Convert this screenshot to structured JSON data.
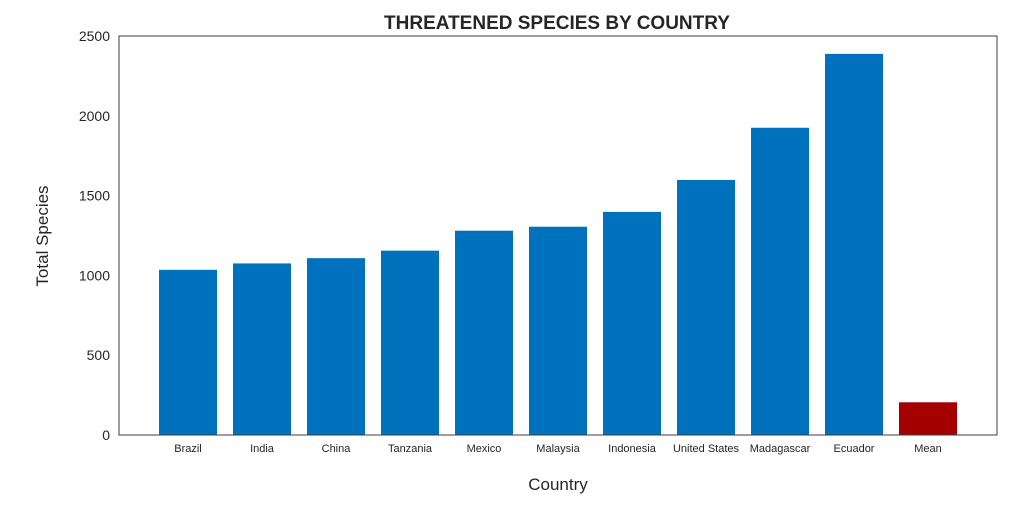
{
  "chart_data": {
    "type": "bar",
    "title": "THREATENED SPECIES BY COUNTRY",
    "xlabel": "Country",
    "ylabel": "Total Species",
    "ylim": [
      0,
      2500
    ],
    "yticks": [
      0,
      500,
      1000,
      1500,
      2000,
      2500
    ],
    "grid": false,
    "categories": [
      "Brazil",
      "India",
      "China",
      "Tanzania",
      "Mexico",
      "Malaysia",
      "Indonesia",
      "United States",
      "Madagascar",
      "Ecuador",
      "Mean"
    ],
    "values": [
      1035,
      1075,
      1108,
      1155,
      1280,
      1305,
      1398,
      1598,
      1925,
      2388,
      205
    ],
    "colors": [
      "#0072bd",
      "#0072bd",
      "#0072bd",
      "#0072bd",
      "#0072bd",
      "#0072bd",
      "#0072bd",
      "#0072bd",
      "#0072bd",
      "#0072bd",
      "#a50000"
    ]
  }
}
